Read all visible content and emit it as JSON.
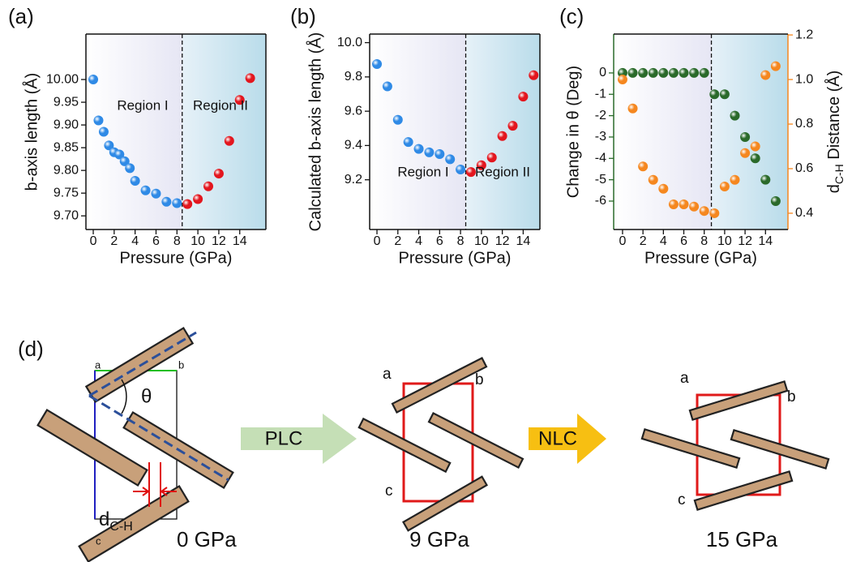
{
  "chart_data": [
    {
      "type": "scatter",
      "panel_label": "(a)",
      "x_label": "Pressure (GPa)",
      "y_label": "b-axis length (Å)",
      "xlim": [
        -0.7,
        16.5
      ],
      "xticks": [
        0,
        2,
        4,
        6,
        8,
        10,
        12,
        14
      ],
      "ylim": [
        9.67,
        10.1
      ],
      "yticks": [
        {
          "value": 9.7,
          "label": "9.70"
        },
        9.75,
        {
          "value": 9.8,
          "label": "9.80"
        },
        9.85,
        {
          "value": 9.9,
          "label": "9.90"
        },
        9.95,
        {
          "value": 10,
          "label": "10.00"
        }
      ],
      "divider": 8.5,
      "series": [
        {
          "name": "Region I",
          "color": "#2f8ae6",
          "x": [
            0,
            0.5,
            1,
            1.5,
            2,
            2.5,
            3,
            3.5,
            4,
            5,
            6,
            7,
            8
          ],
          "values": [
            10.0,
            9.91,
            9.885,
            9.855,
            9.84,
            9.835,
            9.82,
            9.805,
            9.777,
            9.756,
            9.749,
            9.731,
            9.728
          ]
        },
        {
          "name": "Region II",
          "color": "#e3161e",
          "x": [
            9,
            10,
            11,
            12,
            13,
            14,
            15
          ],
          "values": [
            9.726,
            9.737,
            9.765,
            9.793,
            9.865,
            9.955,
            10.003
          ]
        }
      ]
    },
    {
      "type": "scatter",
      "panel_label": "(b)",
      "x_label": "Pressure (GPa)",
      "y_label": "Calculated b-axis length (Å)",
      "xlim": [
        -0.7,
        15.6
      ],
      "xticks": [
        0,
        2,
        4,
        6,
        8,
        10,
        12,
        14
      ],
      "ylim": [
        8.91,
        10.05
      ],
      "yticks": [
        9.2,
        9.4,
        9.6,
        9.8,
        {
          "value": 10,
          "label": "10.0"
        }
      ],
      "divider": 8.5,
      "series": [
        {
          "name": "Region I",
          "color": "#2f8ae6",
          "x": [
            0,
            1,
            2,
            3,
            4,
            5,
            6,
            7,
            8
          ],
          "values": [
            9.875,
            9.745,
            9.55,
            9.42,
            9.38,
            9.36,
            9.35,
            9.32,
            9.26
          ]
        },
        {
          "name": "Region II",
          "color": "#e3161e",
          "x": [
            9,
            10,
            11,
            12,
            13,
            14,
            15
          ],
          "values": [
            9.245,
            9.285,
            9.33,
            9.455,
            9.515,
            9.685,
            9.81
          ]
        }
      ]
    },
    {
      "type": "scatter",
      "panel_label": "(c)",
      "x_label": "Pressure (GPa)",
      "y_label": "Change in θ (Deg)",
      "y2_label": [
        "d",
        "C-H",
        " Distance (Å)"
      ],
      "xlim": [
        -0.87,
        16.2
      ],
      "xticks": [
        0,
        2,
        4,
        6,
        8,
        10,
        12,
        14
      ],
      "ylim": [
        -7.33,
        1.82
      ],
      "yticks": [
        -6,
        -5,
        -4,
        -3,
        -2,
        -1,
        0
      ],
      "y2lim": [
        0.327,
        1.204
      ],
      "y2ticks": [
        0.4,
        0.6,
        0.8,
        {
          "value": 1.0,
          "label": "1.0"
        },
        1.2
      ],
      "divider": 8.7,
      "series": [
        {
          "color": "#2a6a2a",
          "x": [
            0,
            1,
            2,
            3,
            4,
            5,
            6,
            7,
            8,
            9,
            10,
            11,
            12,
            13,
            14,
            15
          ],
          "values": [
            0,
            0,
            0,
            0,
            0,
            0,
            0,
            0,
            0,
            -1,
            -1,
            -2,
            -3,
            -4,
            -5,
            -6
          ]
        },
        {
          "color": "#f5871f",
          "axis": "y2",
          "x": [
            0,
            1,
            2,
            3,
            4,
            5,
            6,
            7,
            8,
            9,
            10,
            11,
            12,
            13,
            14,
            15
          ],
          "values": [
            1.0,
            0.87,
            0.61,
            0.55,
            0.51,
            0.44,
            0.44,
            0.43,
            0.41,
            0.4,
            0.52,
            0.55,
            0.67,
            0.7,
            1.02,
            1.06
          ]
        }
      ]
    }
  ],
  "diagram": {
    "panel_label": "(d)",
    "angle": "θ",
    "distance": [
      "d",
      "C-H"
    ],
    "panels": [
      {
        "pressure": "0 GPa",
        "axes": [
          "a",
          "b",
          "c"
        ]
      },
      {
        "pressure": "9 GPa",
        "axes": [
          "a",
          "b",
          "c"
        ]
      },
      {
        "pressure": "15 GPa",
        "axes": [
          "a",
          "b",
          "c"
        ]
      }
    ],
    "transitions": [
      "PLC",
      "NLC"
    ]
  }
}
